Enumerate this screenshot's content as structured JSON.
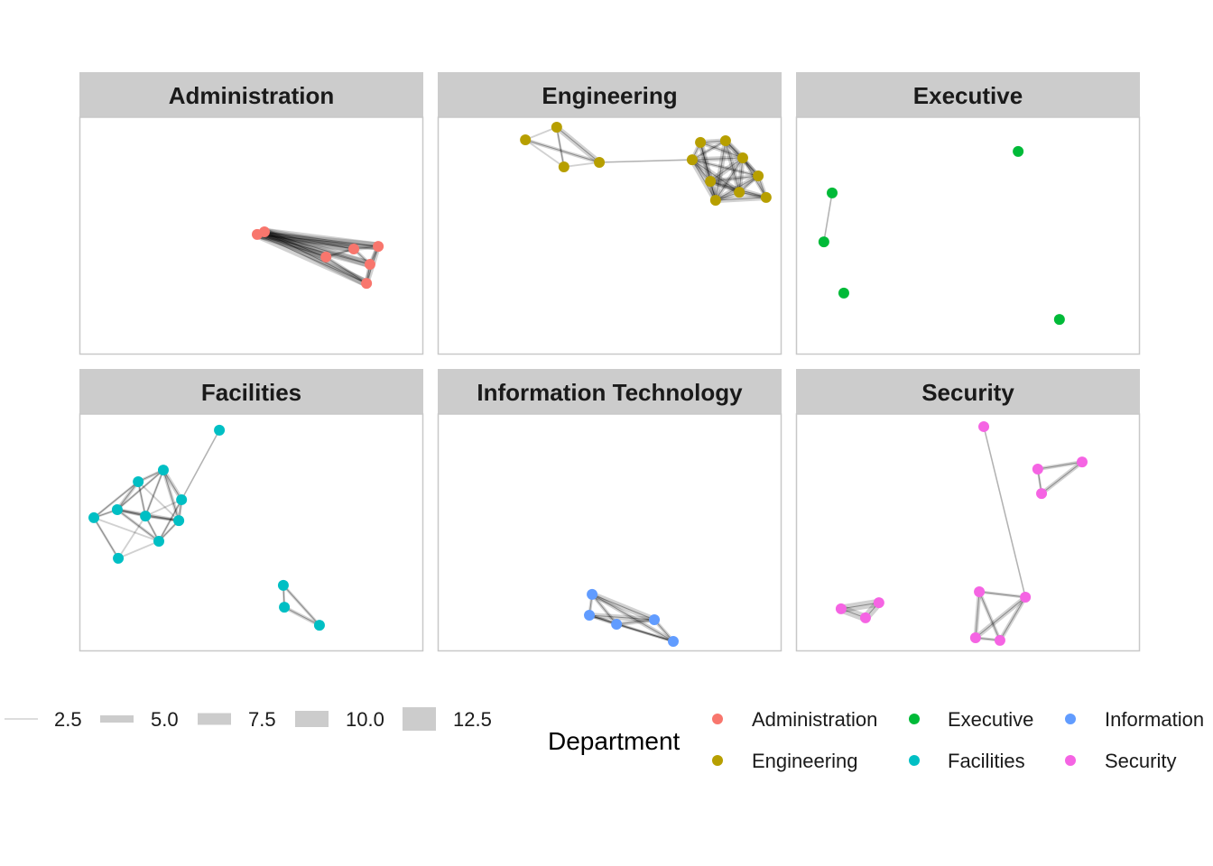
{
  "chart_data": {
    "type": "network-facets",
    "layout_units": "graph layout coordinates, 0-100 per facet",
    "colors": {
      "Administration": "#F8766D",
      "Engineering": "#B79F00",
      "Executive": "#00BA38",
      "Facilities": "#00BFC4",
      "Information Technology": "#619CFF",
      "Security": "#F564E3"
    },
    "facets": [
      {
        "name": "Administration",
        "nodes": [
          [
            51.7,
            49.4
          ],
          [
            53.8,
            48.3
          ],
          [
            71.7,
            58.9
          ],
          [
            79.8,
            55.5
          ],
          [
            86.9,
            54.4
          ],
          [
            84.5,
            62.0
          ],
          [
            83.5,
            70.0
          ]
        ],
        "edges": [
          [
            0,
            3,
            12
          ],
          [
            1,
            3,
            12
          ],
          [
            0,
            4,
            12
          ],
          [
            1,
            4,
            12
          ],
          [
            0,
            6,
            12
          ],
          [
            1,
            6,
            12
          ],
          [
            0,
            2,
            10
          ],
          [
            1,
            2,
            10
          ],
          [
            0,
            5,
            11
          ],
          [
            1,
            5,
            11
          ],
          [
            3,
            4,
            6
          ],
          [
            4,
            5,
            6
          ],
          [
            5,
            6,
            6
          ],
          [
            4,
            6,
            8
          ],
          [
            3,
            5,
            5
          ],
          [
            2,
            3,
            4
          ],
          [
            2,
            6,
            5
          ]
        ]
      },
      {
        "name": "Engineering",
        "nodes": [
          [
            25.5,
            9.5
          ],
          [
            34.6,
            4.2
          ],
          [
            36.7,
            20.9
          ],
          [
            47.0,
            19.0
          ],
          [
            74.0,
            17.9
          ],
          [
            76.4,
            10.6
          ],
          [
            83.7,
            9.9
          ],
          [
            88.7,
            17.1
          ],
          [
            93.2,
            24.7
          ],
          [
            95.5,
            33.8
          ],
          [
            87.7,
            31.6
          ],
          [
            80.8,
            35.0
          ],
          [
            79.3,
            27.0
          ]
        ],
        "edges": [
          [
            0,
            1,
            2
          ],
          [
            0,
            2,
            2
          ],
          [
            0,
            3,
            5
          ],
          [
            1,
            2,
            3
          ],
          [
            1,
            3,
            8
          ],
          [
            2,
            3,
            2
          ],
          [
            3,
            4,
            1.5
          ],
          [
            4,
            5,
            6
          ],
          [
            4,
            6,
            5
          ],
          [
            4,
            7,
            7
          ],
          [
            4,
            8,
            5
          ],
          [
            4,
            10,
            8
          ],
          [
            4,
            11,
            9
          ],
          [
            4,
            12,
            6
          ],
          [
            5,
            6,
            7
          ],
          [
            5,
            7,
            6
          ],
          [
            5,
            11,
            9
          ],
          [
            5,
            12,
            5
          ],
          [
            6,
            7,
            8
          ],
          [
            6,
            8,
            6
          ],
          [
            6,
            10,
            7
          ],
          [
            6,
            11,
            8
          ],
          [
            7,
            8,
            6
          ],
          [
            7,
            9,
            5
          ],
          [
            7,
            10,
            7
          ],
          [
            7,
            11,
            6
          ],
          [
            7,
            12,
            8
          ],
          [
            8,
            9,
            6
          ],
          [
            8,
            10,
            5
          ],
          [
            8,
            11,
            7
          ],
          [
            9,
            10,
            6
          ],
          [
            9,
            11,
            8
          ],
          [
            10,
            11,
            7
          ],
          [
            10,
            12,
            6
          ],
          [
            11,
            12,
            6
          ],
          [
            12,
            8,
            6
          ],
          [
            12,
            9,
            7
          ]
        ]
      },
      {
        "name": "Executive",
        "nodes": [
          [
            10.5,
            31.9
          ],
          [
            8.1,
            52.5
          ],
          [
            13.9,
            74.1
          ],
          [
            64.6,
            14.4
          ],
          [
            76.6,
            85.2
          ]
        ],
        "edges": [
          [
            0,
            1,
            1.5
          ]
        ]
      },
      {
        "name": "Facilities",
        "nodes": [
          [
            40.7,
            6.8
          ],
          [
            24.4,
            23.6
          ],
          [
            17.1,
            28.5
          ],
          [
            29.7,
            36.1
          ],
          [
            11.0,
            40.3
          ],
          [
            4.2,
            43.7
          ],
          [
            19.2,
            43.0
          ],
          [
            28.9,
            44.9
          ],
          [
            23.1,
            53.6
          ],
          [
            11.3,
            60.8
          ],
          [
            59.3,
            72.2
          ],
          [
            59.6,
            81.4
          ],
          [
            69.8,
            89.0
          ]
        ],
        "edges": [
          [
            0,
            3,
            1.5
          ],
          [
            1,
            2,
            4
          ],
          [
            1,
            3,
            6
          ],
          [
            1,
            6,
            3
          ],
          [
            1,
            7,
            5
          ],
          [
            1,
            4,
            3
          ],
          [
            2,
            4,
            5
          ],
          [
            2,
            6,
            3
          ],
          [
            2,
            7,
            2
          ],
          [
            2,
            5,
            3
          ],
          [
            3,
            7,
            4
          ],
          [
            3,
            8,
            3
          ],
          [
            4,
            5,
            3
          ],
          [
            4,
            6,
            4
          ],
          [
            4,
            7,
            5
          ],
          [
            4,
            8,
            4
          ],
          [
            5,
            9,
            3
          ],
          [
            5,
            8,
            2
          ],
          [
            6,
            7,
            4
          ],
          [
            6,
            8,
            3
          ],
          [
            6,
            9,
            2
          ],
          [
            7,
            8,
            3
          ],
          [
            8,
            9,
            2
          ],
          [
            3,
            6,
            2
          ],
          [
            10,
            11,
            3
          ],
          [
            10,
            12,
            4
          ],
          [
            11,
            12,
            5
          ]
        ]
      },
      {
        "name": "Information Technology",
        "nodes": [
          [
            44.9,
            76.0
          ],
          [
            44.1,
            84.8
          ],
          [
            52.0,
            88.6
          ],
          [
            63.0,
            86.7
          ],
          [
            68.5,
            95.8
          ]
        ],
        "edges": [
          [
            0,
            3,
            9
          ],
          [
            0,
            4,
            6
          ],
          [
            1,
            3,
            8
          ],
          [
            1,
            4,
            4
          ],
          [
            0,
            1,
            4
          ],
          [
            1,
            2,
            5
          ],
          [
            2,
            3,
            6
          ],
          [
            3,
            4,
            5
          ],
          [
            0,
            2,
            5
          ],
          [
            2,
            4,
            3
          ]
        ]
      },
      {
        "name": "Security",
        "nodes": [
          [
            54.6,
            5.3
          ],
          [
            70.3,
            23.2
          ],
          [
            83.2,
            20.2
          ],
          [
            71.4,
            33.5
          ],
          [
            13.1,
            82.1
          ],
          [
            20.2,
            85.9
          ],
          [
            24.1,
            79.5
          ],
          [
            53.3,
            74.9
          ],
          [
            66.7,
            77.2
          ],
          [
            52.2,
            94.3
          ],
          [
            59.3,
            95.4
          ]
        ],
        "edges": [
          [
            0,
            8,
            1.5
          ],
          [
            1,
            2,
            5
          ],
          [
            1,
            3,
            3
          ],
          [
            2,
            3,
            6
          ],
          [
            4,
            5,
            12
          ],
          [
            4,
            6,
            12
          ],
          [
            5,
            6,
            12
          ],
          [
            7,
            8,
            4
          ],
          [
            7,
            9,
            6
          ],
          [
            7,
            10,
            5
          ],
          [
            8,
            9,
            7
          ],
          [
            8,
            10,
            6
          ],
          [
            9,
            10,
            4
          ]
        ]
      }
    ],
    "width_legend": {
      "values": [
        "2.5",
        "5.0",
        "7.5",
        "10.0",
        "12.5"
      ]
    },
    "color_legend": {
      "title": "Department",
      "entries": [
        "Administration",
        "Engineering",
        "Executive",
        "Facilities",
        "Information Technology",
        "Security"
      ],
      "visible_labels": [
        "Administration",
        "Engineering",
        "Executive",
        "Facilities",
        "Information",
        "Security"
      ]
    }
  }
}
